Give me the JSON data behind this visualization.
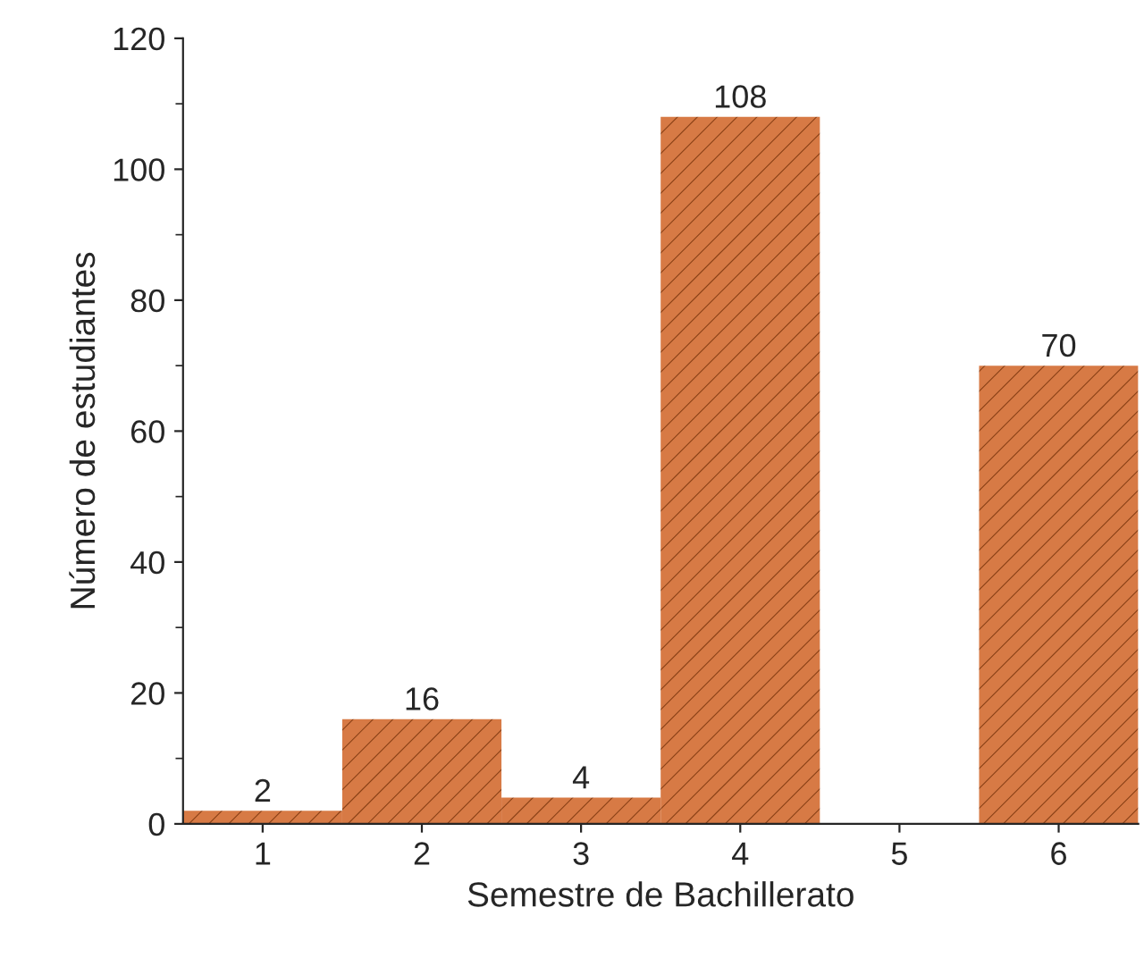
{
  "chart_data": {
    "type": "bar",
    "xlabel": "Semestre de Bachillerato",
    "ylabel": "Número de estudiantes",
    "categories": [
      "1",
      "2",
      "3",
      "4",
      "5",
      "6"
    ],
    "values": [
      2,
      16,
      4,
      108,
      null,
      70
    ],
    "color": "#d77a45",
    "ylim": [
      0,
      120
    ],
    "yticks": [
      0,
      20,
      40,
      60,
      80,
      100,
      120
    ],
    "data_labels": true,
    "grid": false
  }
}
